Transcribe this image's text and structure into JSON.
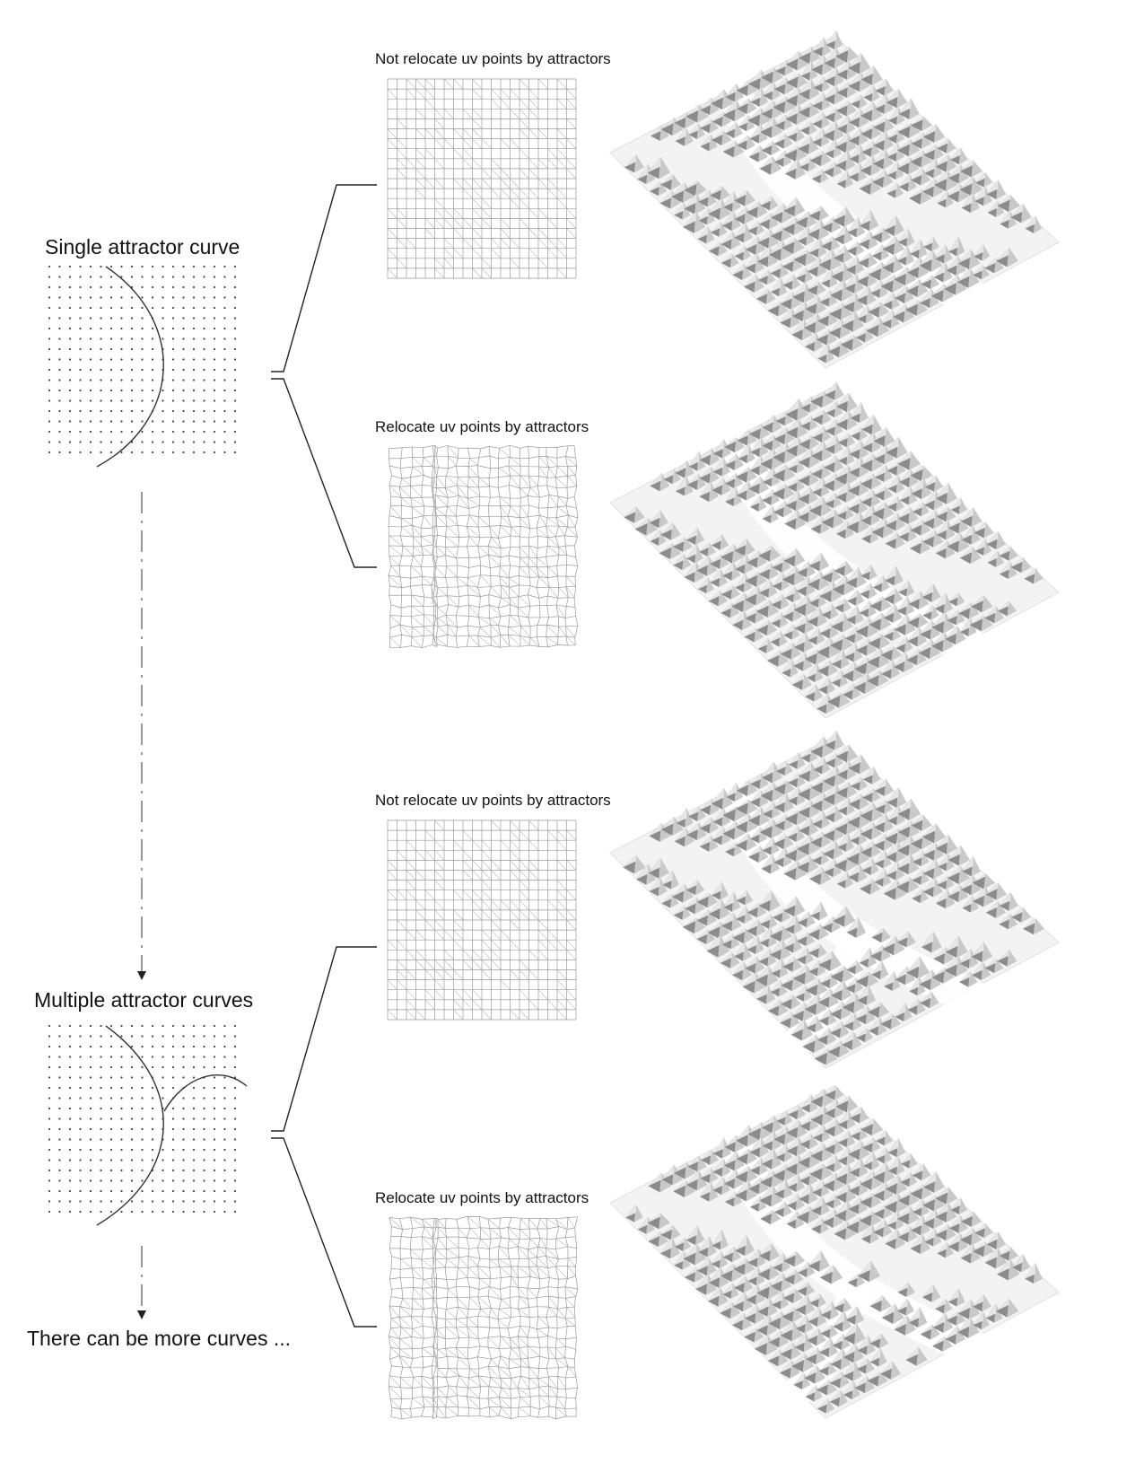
{
  "section1": {
    "source_label": "Single attractor curve",
    "top_label": "Not relocate uv points by attractors",
    "bottom_label": "Relocate uv points by attractors"
  },
  "section2": {
    "source_label": "Multiple attractor curves",
    "top_label": "Not relocate uv points by attractors",
    "bottom_label": "Relocate uv points by attractors"
  },
  "footer_label": "There can be more curves ...",
  "colors": {
    "line": "#222222",
    "grid": "#8a8a8a",
    "surface": "#f2f2f2",
    "shade": "#6e6e6e"
  }
}
